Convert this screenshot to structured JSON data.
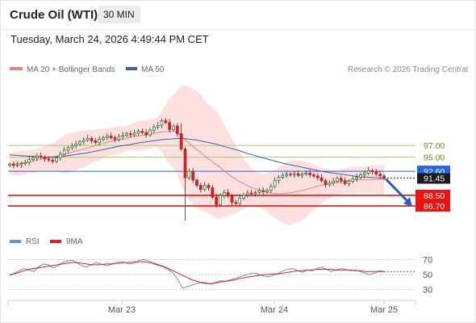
{
  "header": {
    "title": "Crude Oil (WTI)",
    "timeframe": "30 MIN",
    "datetime": "Tuesday, March 24, 2026 4:49:44 PM CET"
  },
  "legend": {
    "ma20_label": "MA 20 + Bollinger Bands",
    "ma50_label": "MA 50",
    "credit": "Research © 2026 Trading Central",
    "rsi_label": "RSI",
    "rsi_ma_label": "9MA"
  },
  "colors": {
    "candle_up": "#2a7a2a",
    "candle_down": "#cc2222",
    "bollinger_fill": "#ffd6d6",
    "ma20": "#f08080",
    "ma50": "#3f5f9f",
    "resistance": "#9ecf6a",
    "resistance_text": "#5a9a1a",
    "pivot": "#2563eb",
    "support": "#ee1111",
    "rsi": "#6b8fd6",
    "rsi_ma": "#e02020",
    "arrow": "#2860b8"
  },
  "chart_data": [
    {
      "type": "candlestick",
      "instrument": "Crude Oil (WTI)",
      "timeframe": "30 MIN",
      "x_ticks": [
        "Mar 23",
        "Mar 24",
        "Mar 25"
      ],
      "y_range": [
        83,
        108
      ],
      "levels": [
        {
          "role": "resistance",
          "value": 97.0,
          "label": "97.00"
        },
        {
          "role": "resistance",
          "value": 95.0,
          "label": "95.00"
        },
        {
          "role": "pivot",
          "value": 92.6,
          "label": "92.60"
        },
        {
          "role": "support",
          "value": 88.5,
          "label": "88.50"
        },
        {
          "role": "support",
          "value": 86.7,
          "label": "86.70"
        }
      ],
      "last_price": {
        "value": 91.45,
        "label": "91.45"
      },
      "projection": {
        "from": 91.45,
        "to": 86.7,
        "direction": "down"
      },
      "closes": [
        93.8,
        93.6,
        93.7,
        93.9,
        94.1,
        94.6,
        94.9,
        95.2,
        95.0,
        94.7,
        94.5,
        94.3,
        94.9,
        95.5,
        96.2,
        96.6,
        96.9,
        97.2,
        97.6,
        97.9,
        98.2,
        97.8,
        97.5,
        98.0,
        98.3,
        98.6,
        98.3,
        98.0,
        98.5,
        98.7,
        99.0,
        98.8,
        99.1,
        99.4,
        99.2,
        98.8,
        99.6,
        100.1,
        100.4,
        101.2,
        100.9,
        99.7,
        100.3,
        99.0,
        96.4,
        91.5,
        92.6,
        91.1,
        90.2,
        89.5,
        90.2,
        89.8,
        88.2,
        86.9,
        88.5,
        89.0,
        88.4,
        87.3,
        87.1,
        88.0,
        88.6,
        88.9,
        88.8,
        89.0,
        89.3,
        89.1,
        89.4,
        90.0,
        91.0,
        91.6,
        91.9,
        92.1,
        92.0,
        92.2,
        91.9,
        92.1,
        92.3,
        92.0,
        91.8,
        91.5,
        91.0,
        90.3,
        90.6,
        90.9,
        91.4,
        91.0,
        90.5,
        90.9,
        91.3,
        91.6,
        92.0,
        92.3,
        92.7,
        92.5,
        92.1,
        91.8,
        91.45
      ],
      "ma20": [
        93.8,
        93.9,
        94.0,
        94.2,
        94.4,
        94.7,
        94.9,
        95.1,
        95.3,
        95.6,
        95.9,
        96.2,
        96.5,
        96.8,
        97.1,
        97.4,
        97.7,
        97.9,
        98.1,
        98.4,
        98.6,
        98.7,
        98.9,
        99.1,
        99.3,
        99.4,
        99.4,
        98.7,
        97.6,
        96.7,
        95.9,
        95.0,
        94.2,
        93.4,
        92.5,
        91.7,
        91.0,
        90.4,
        89.9,
        89.5,
        89.2,
        88.9,
        88.8,
        88.8,
        88.9,
        89.1,
        89.3,
        89.6,
        89.9,
        90.2,
        90.4,
        90.6,
        90.8,
        91.0,
        91.1,
        91.2,
        91.2,
        91.2,
        91.2,
        91.3
      ],
      "ma50": [
        95.4,
        95.3,
        95.2,
        95.1,
        95.0,
        95.0,
        95.1,
        95.3,
        95.5,
        95.7,
        96.0,
        96.3,
        96.6,
        96.9,
        97.1,
        97.4,
        97.6,
        97.8,
        98.0,
        98.1,
        98.2,
        98.1,
        97.9,
        97.6,
        97.3,
        96.9,
        96.5,
        96.1,
        95.6,
        95.2,
        94.8,
        94.4,
        94.0,
        93.7,
        93.4,
        93.1,
        92.8,
        92.5,
        92.3,
        92.1,
        91.9,
        91.7,
        91.6,
        91.5,
        91.4
      ]
    },
    {
      "type": "line",
      "name": "RSI",
      "y_ticks": [
        70,
        50,
        30
      ],
      "y_range": [
        20,
        80
      ],
      "series": [
        {
          "name": "RSI",
          "values": [
            48,
            52,
            55,
            58,
            56,
            54,
            60,
            64,
            63,
            59,
            61,
            66,
            68,
            69,
            66,
            62,
            60,
            63,
            66,
            64,
            62,
            63,
            65,
            67,
            66,
            64,
            65,
            69,
            70,
            68,
            64,
            62,
            60,
            57,
            52,
            44,
            32,
            34,
            36,
            38,
            40,
            39,
            37,
            40,
            42,
            41,
            43,
            45,
            47,
            49,
            51,
            52,
            50,
            48,
            47,
            49,
            52,
            55,
            57,
            58,
            55,
            53,
            56,
            55,
            58,
            60,
            57,
            54,
            56,
            58,
            57,
            55,
            56,
            54,
            52,
            50,
            52,
            55,
            54
          ]
        },
        {
          "name": "9MA",
          "values": [
            50,
            51,
            53,
            55,
            57,
            58,
            59,
            60,
            61,
            62,
            63,
            64,
            65,
            66,
            66,
            65,
            64,
            63,
            63,
            63,
            64,
            64,
            65,
            65,
            66,
            66,
            67,
            67,
            67,
            66,
            65,
            63,
            61,
            58,
            55,
            52,
            49,
            46,
            43,
            41,
            39,
            38,
            38,
            39,
            40,
            41,
            42,
            43,
            45,
            46,
            47,
            48,
            49,
            50,
            50,
            51,
            51,
            52,
            53,
            54,
            55,
            55,
            56,
            56,
            57,
            57,
            57,
            57,
            56,
            56,
            56,
            56,
            55,
            55,
            54,
            54,
            54,
            54,
            54
          ]
        }
      ]
    }
  ]
}
